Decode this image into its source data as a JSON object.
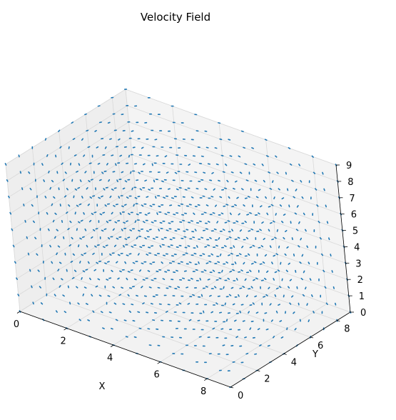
{
  "chart_data": {
    "type": "quiver3d",
    "title": "Velocity Field",
    "xlabel": "X",
    "ylabel": "Y",
    "zlabel": "",
    "x": [
      0,
      1,
      2,
      3,
      4,
      5,
      6,
      7,
      8,
      9
    ],
    "y": [
      0,
      1,
      2,
      3,
      4,
      5,
      6,
      7,
      8,
      9
    ],
    "z": [
      0,
      1,
      2,
      3,
      4,
      5,
      6,
      7,
      8,
      9
    ],
    "xlim": [
      0,
      9
    ],
    "ylim": [
      0,
      9
    ],
    "zlim": [
      0,
      9
    ],
    "x_ticks": [
      0,
      2,
      4,
      6,
      8
    ],
    "y_ticks": [
      0,
      2,
      4,
      6,
      8
    ],
    "z_ticks": [
      0,
      1,
      2,
      3,
      4,
      5,
      6,
      7,
      8,
      9
    ],
    "grid": true,
    "series_color": "#1f77b4",
    "pane_color": "#f2f2f2",
    "grid_color": "#d9d9d9"
  }
}
